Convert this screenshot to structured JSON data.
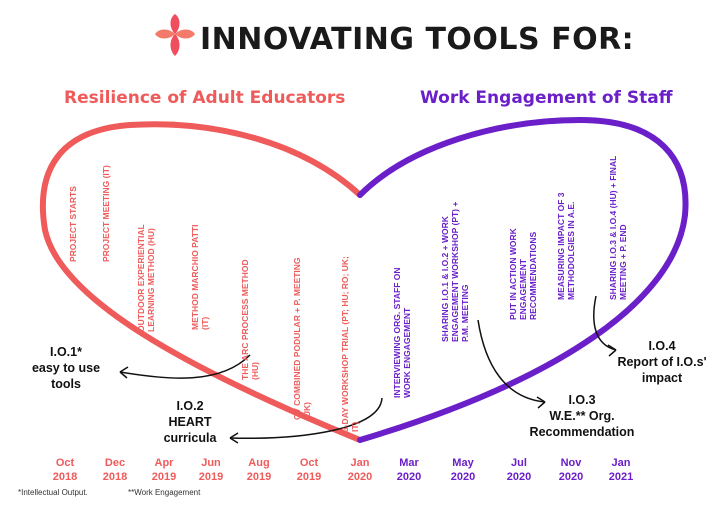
{
  "title": "INNOVATING TOOLS FOR:",
  "subtitle_left": "Resilience of Adult Educators",
  "subtitle_right": "Work Engagement of Staff",
  "colors": {
    "red": "#ef5b5b",
    "purple": "#6a1fc9",
    "logo": "#f04e5e"
  },
  "milestones": [
    {
      "text": "PROJECT STARTS",
      "color": "red"
    },
    {
      "text": "PROJECT MEETING (IT)",
      "color": "red"
    },
    {
      "text": "OUTDOOR EXPERIENTIAL LEARNING METHOD (HU)",
      "color": "red"
    },
    {
      "text": "METHOD MARCHIO PATTI (IT)",
      "color": "red"
    },
    {
      "text": "THE ARC PROCESS METHOD (HU)",
      "color": "red"
    },
    {
      "text": "CV COMBINED PODULAR + P. MEETING (UK)",
      "color": "red"
    },
    {
      "text": "3-DAY WORKSHOP TRIAL (PT; HU; RO; UK; IT)",
      "color": "red"
    },
    {
      "text": "INTERVIEWING ORG. STAFF ON WORK ENGAGEMENT",
      "color": "purple"
    },
    {
      "text": "SHARING I.O.1 & I.O.2 + WORK ENGAGEMENT WORKSHOP (PT) + P.M. MEETING",
      "color": "purple"
    },
    {
      "text": "PUT IN ACTION WORK ENGAGEMENT RECOMMENDATIONS",
      "color": "purple"
    },
    {
      "text": "MEASURING IMPACT OF 3 METHODOLGIES IN A.E.",
      "color": "purple"
    },
    {
      "text": "SHARING I.O.3 & I.O.4 (HU) + FINAL MEETING + P. END",
      "color": "purple"
    }
  ],
  "outputs": {
    "io1": {
      "code": "I.O.1*",
      "line1": "easy to use",
      "line2": "tools"
    },
    "io2": {
      "code": "I.O.2",
      "line1": "HEART",
      "line2": "curricula"
    },
    "io3": {
      "code": "I.O.3",
      "line1": "W.E.** Org.",
      "line2": "Recommendation"
    },
    "io4": {
      "code": "I.O.4",
      "line1": "Report of I.O.s'",
      "line2": "impact"
    }
  },
  "dates": [
    {
      "month": "Oct",
      "year": "2018",
      "color": "red"
    },
    {
      "month": "Dec",
      "year": "2018",
      "color": "red"
    },
    {
      "month": "Apr",
      "year": "2019",
      "color": "red"
    },
    {
      "month": "Jun",
      "year": "2019",
      "color": "red"
    },
    {
      "month": "Aug",
      "year": "2019",
      "color": "red"
    },
    {
      "month": "Oct",
      "year": "2019",
      "color": "red"
    },
    {
      "month": "Jan",
      "year": "2020",
      "color": "red"
    },
    {
      "month": "Mar",
      "year": "2020",
      "color": "purple"
    },
    {
      "month": "May",
      "year": "2020",
      "color": "purple"
    },
    {
      "month": "Jul",
      "year": "2020",
      "color": "purple"
    },
    {
      "month": "Nov",
      "year": "2020",
      "color": "purple"
    },
    {
      "month": "Jan",
      "year": "2021",
      "color": "purple"
    }
  ],
  "footnotes": {
    "f1": "*Intellectual Output.",
    "f2": "**Work Engagement"
  }
}
